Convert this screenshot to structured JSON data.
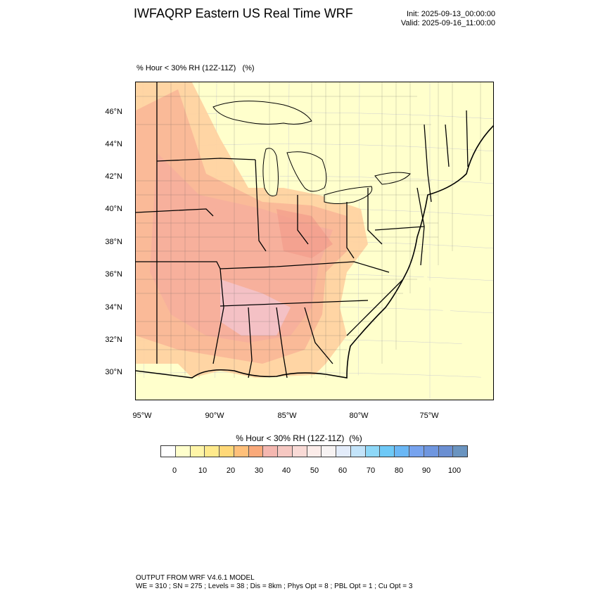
{
  "header": {
    "title": "IWFAQRP Eastern US Real Time WRF",
    "init": "Init: 2025-09-13_00:00:00",
    "valid": "Valid: 2025-09-16_11:00:00"
  },
  "map": {
    "subtitle": "% Hour < 30% RH (12Z-11Z)   (%)",
    "lat_labels": [
      "46°N",
      "44°N",
      "42°N",
      "40°N",
      "38°N",
      "36°N",
      "34°N",
      "32°N",
      "30°N"
    ],
    "lon_labels": [
      "95°W",
      "90°W",
      "85°W",
      "80°W",
      "75°W"
    ],
    "colors": {
      "ocean_land_base": "#ffffcc",
      "border": "#000000"
    }
  },
  "legend": {
    "title": "% Hour < 30% RH (12Z-11Z)  (%)",
    "labels": [
      "0",
      "10",
      "20",
      "30",
      "40",
      "50",
      "60",
      "70",
      "80",
      "90",
      "100"
    ],
    "colors": [
      "#ffffff",
      "#ffffcc",
      "#fff5a8",
      "#ffea8c",
      "#ffd878",
      "#ffc07a",
      "#f9a97a",
      "#f4b7b0",
      "#f6c8c2",
      "#f9dad6",
      "#fcece9",
      "#f7f3f3",
      "#e3ecfa",
      "#c3e4fa",
      "#8ed8f8",
      "#6ec9f7",
      "#6ab7f5",
      "#77a3ee",
      "#6f96df",
      "#6b8fd2",
      "#6a94c0"
    ]
  },
  "footer": {
    "line1": "OUTPUT FROM WRF V4.6.1 MODEL",
    "line2": "WE = 310 ; SN = 275 ; Levels = 38 ; Dis = 8km ; Phys Opt = 8 ; PBL Opt = 1 ; Cu Opt = 3"
  }
}
